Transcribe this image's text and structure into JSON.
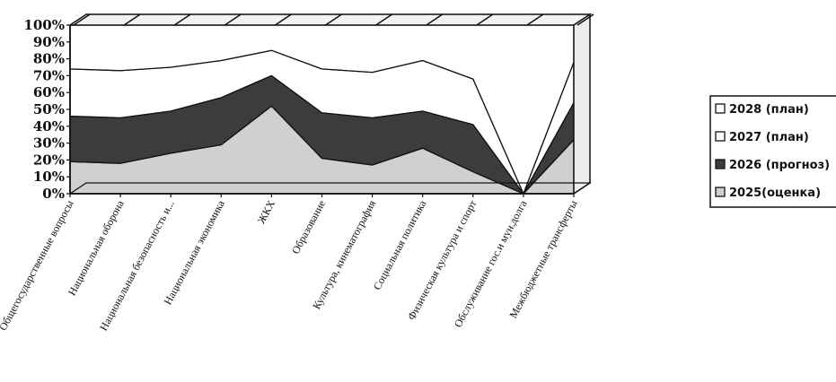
{
  "chart_data": {
    "type": "area",
    "stacking": "percent",
    "ylim": [
      0,
      100
    ],
    "grid": true,
    "legend_position": "right",
    "yticks": [
      "0%",
      "10%",
      "20%",
      "30%",
      "40%",
      "50%",
      "60%",
      "70%",
      "80%",
      "90%",
      "100%"
    ],
    "categories": [
      "Общегосударственные вопросы",
      "Национальная оборона",
      "Национальная безопасность и...",
      "Национальная экономика",
      "ЖКХ",
      "Образование",
      "Культура, кинематография",
      "Социальная политика",
      "Физическая культура и спорт",
      "Обслуживание гос.и мун.долга",
      "Межбюджетные трансферты"
    ],
    "series": [
      {
        "name": "2025(оценка)",
        "color": "#d0d0d0",
        "values": [
          19,
          18,
          24,
          29,
          52,
          21,
          17,
          27,
          13,
          0,
          32
        ]
      },
      {
        "name": "2026 (прогноз)",
        "color": "#3c3c3c",
        "values": [
          27,
          27,
          25,
          28,
          18,
          27,
          28,
          22,
          28,
          0,
          22
        ]
      },
      {
        "name": "2027 (план)",
        "color": "#ffffff",
        "values": [
          28,
          28,
          26,
          22,
          15,
          26,
          27,
          30,
          27,
          0,
          24
        ]
      },
      {
        "name": "2028 (план)",
        "color": "#ffffff",
        "values": [
          26,
          27,
          25,
          21,
          15,
          26,
          28,
          21,
          32,
          100,
          22
        ]
      }
    ],
    "legend_order": [
      "2028 (план)",
      "2027 (план)",
      "2026 (прогноз)",
      "2025(оценка)"
    ]
  }
}
